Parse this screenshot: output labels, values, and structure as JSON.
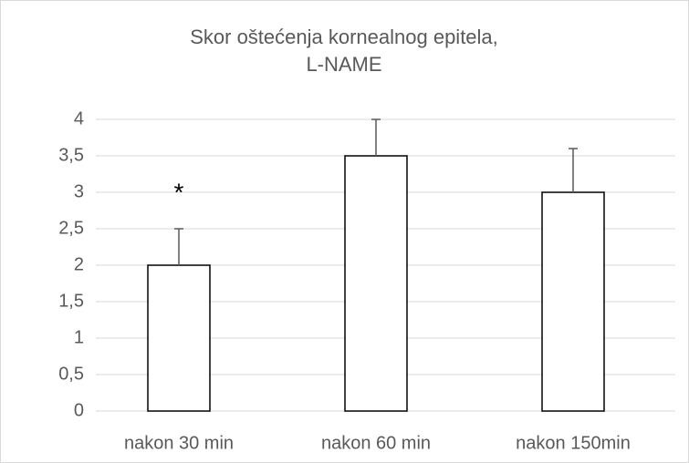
{
  "chart_data": {
    "type": "bar",
    "title": [
      "Skor oštećenja kornealnog epitela,",
      "L-NAME"
    ],
    "categories": [
      "nakon 30 min",
      "nakon 60 min",
      "nakon 150min"
    ],
    "values": [
      2,
      3.5,
      3
    ],
    "errors": [
      0.5,
      0.5,
      0.6
    ],
    "color": "#ffffff",
    "annotation": "*",
    "ylim": [
      0,
      4
    ],
    "yticks": [
      0,
      {
        "value": 0.5,
        "label": "0,5"
      },
      1,
      {
        "value": 1.5,
        "label": "1,5"
      },
      2,
      {
        "value": 2.5,
        "label": "2,5"
      },
      3,
      {
        "value": 3.5,
        "label": "3,5"
      },
      4
    ],
    "grid": true
  }
}
